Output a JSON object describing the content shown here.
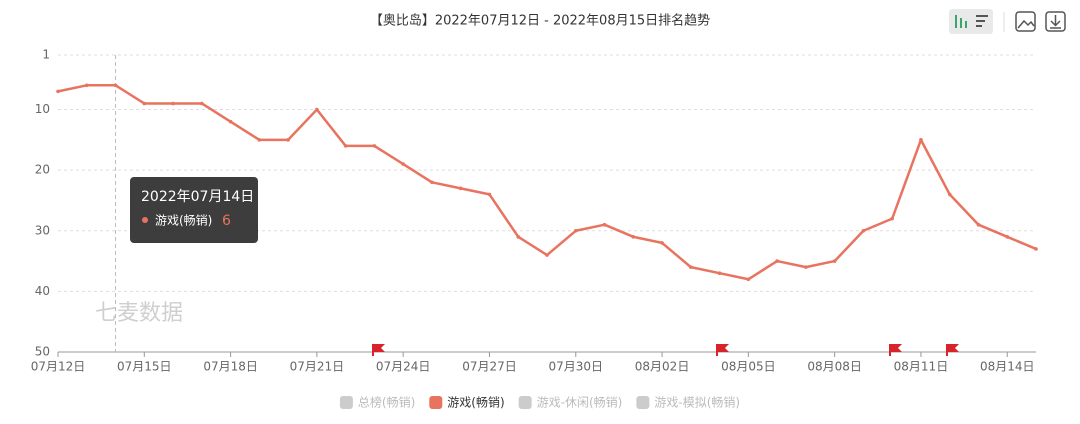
{
  "chart_data": {
    "type": "line",
    "title": "【奥比岛】2022年07月12日 - 2022年08月15日排名趋势",
    "categories": [
      "07月12日",
      null,
      null,
      "07月15日",
      null,
      null,
      "07月18日",
      null,
      null,
      "07月21日",
      null,
      null,
      "07月24日",
      null,
      null,
      "07月27日",
      null,
      null,
      "07月30日",
      null,
      null,
      "08月02日",
      null,
      null,
      "08月05日",
      null,
      null,
      "08月08日",
      null,
      null,
      "08月11日",
      null,
      null,
      "08月14日",
      null
    ],
    "series": [
      {
        "name": "游戏(畅销)",
        "color": "#e8735f",
        "values": [
          7,
          6,
          6,
          9,
          9,
          9,
          12,
          15,
          15,
          10,
          16,
          16,
          19,
          22,
          23,
          24,
          31,
          34,
          30,
          29,
          31,
          32,
          36,
          37,
          38,
          35,
          36,
          35,
          30,
          28,
          15,
          24,
          29,
          31,
          33
        ]
      }
    ],
    "ylim": [
      1,
      50
    ],
    "y_inverted": true,
    "yticks": [
      1,
      10,
      20,
      30,
      40,
      50
    ],
    "grid": true,
    "legend": [
      {
        "name": "总榜(畅销)",
        "active": false
      },
      {
        "name": "游戏(畅销)",
        "active": true
      },
      {
        "name": "游戏-休闲(畅销)",
        "active": false
      },
      {
        "name": "游戏-模拟(畅销)",
        "active": false
      }
    ],
    "inactive_color": "#cccccc",
    "tooltip": {
      "title": "2022年07月14日",
      "index": 2,
      "value": 6
    },
    "watermark": "七麦数据"
  }
}
